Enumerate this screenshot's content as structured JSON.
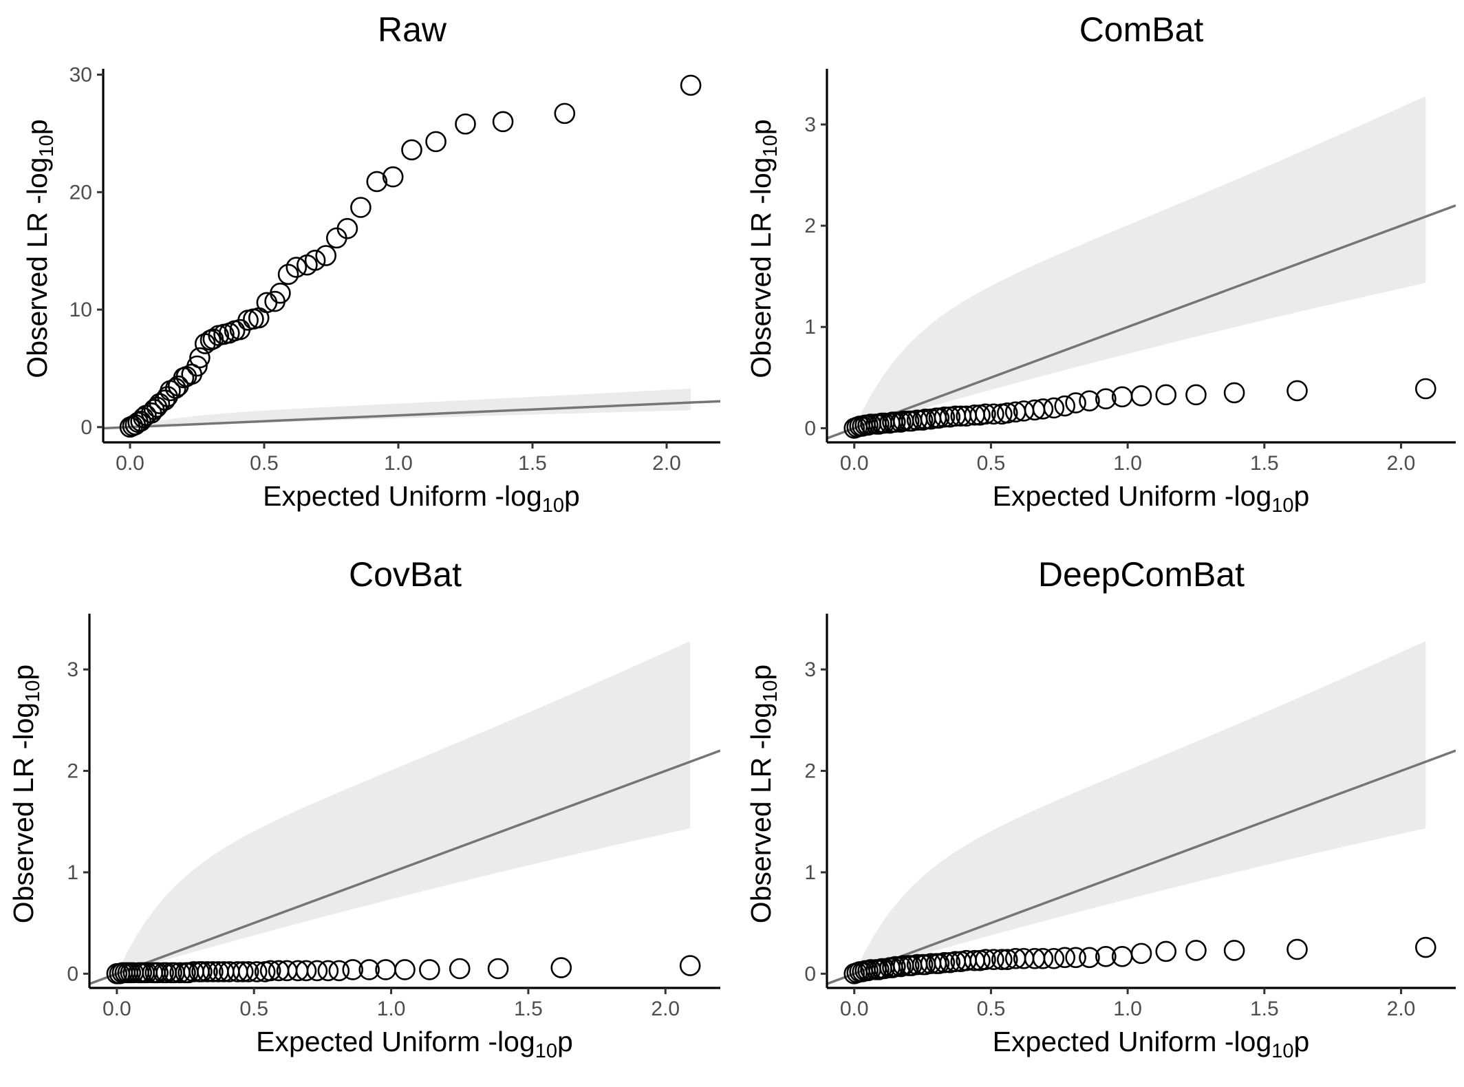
{
  "chart_data": [
    {
      "type": "scatter",
      "title": "Raw",
      "xlabel": "Expected Uniform -log",
      "xlabel_sub": "10",
      "xlabel_suffix": "p",
      "ylabel": "Observed LR -log",
      "ylabel_sub": "10",
      "ylabel_suffix": "p",
      "xlim": [
        -0.1,
        2.2
      ],
      "ylim": [
        -1.3,
        30.5
      ],
      "xticks": [
        0.0,
        0.5,
        1.0,
        1.5,
        2.0
      ],
      "xtick_labels": [
        "0.0",
        "0.5",
        "1.0",
        "1.5",
        "2.0"
      ],
      "yticks": [
        0,
        10,
        20,
        30
      ],
      "ytick_labels": [
        "0",
        "10",
        "20",
        "30"
      ],
      "grid": false,
      "reference_line": "y = x",
      "confidence_band": true,
      "series": [
        {
          "x": [
            2.09,
            1.62,
            1.39,
            1.25,
            1.14,
            1.05,
            0.98,
            0.92,
            0.86,
            0.81,
            0.77,
            0.73,
            0.69,
            0.66,
            0.62,
            0.59,
            0.56,
            0.54,
            0.51,
            0.48,
            0.46,
            0.44,
            0.41,
            0.39,
            0.37,
            0.35,
            0.33,
            0.31,
            0.3,
            0.28,
            0.26,
            0.25,
            0.23,
            0.21,
            0.2,
            0.18,
            0.17,
            0.15,
            0.14,
            0.13,
            0.11,
            0.1,
            0.09,
            0.08,
            0.06,
            0.05,
            0.04,
            0.03,
            0.02,
            0.01,
            0.0
          ],
          "y": [
            29.1,
            26.7,
            26.0,
            25.8,
            24.3,
            23.6,
            21.3,
            20.9,
            18.7,
            16.9,
            16.1,
            14.6,
            14.2,
            13.8,
            13.6,
            13.0,
            11.4,
            10.7,
            10.6,
            9.3,
            9.2,
            9.1,
            8.3,
            8.2,
            8.0,
            7.9,
            7.8,
            7.5,
            7.4,
            7.1,
            5.9,
            5.2,
            4.5,
            4.3,
            4.2,
            3.5,
            3.3,
            3.1,
            2.6,
            2.3,
            2.0,
            1.7,
            1.5,
            1.2,
            1.0,
            0.8,
            0.5,
            0.4,
            0.2,
            0.1,
            0.0
          ]
        }
      ]
    },
    {
      "type": "scatter",
      "title": "ComBat",
      "xlabel": "Expected Uniform -log",
      "xlabel_sub": "10",
      "xlabel_suffix": "p",
      "ylabel": "Observed LR -log",
      "ylabel_sub": "10",
      "ylabel_suffix": "p",
      "xlim": [
        -0.1,
        2.2
      ],
      "ylim": [
        -0.14,
        3.55
      ],
      "xticks": [
        0.0,
        0.5,
        1.0,
        1.5,
        2.0
      ],
      "xtick_labels": [
        "0.0",
        "0.5",
        "1.0",
        "1.5",
        "2.0"
      ],
      "yticks": [
        0,
        1,
        2,
        3
      ],
      "ytick_labels": [
        "0",
        "1",
        "2",
        "3"
      ],
      "grid": false,
      "reference_line": "y = x",
      "confidence_band": true,
      "series": [
        {
          "x": [
            2.09,
            1.62,
            1.39,
            1.25,
            1.14,
            1.05,
            0.98,
            0.92,
            0.86,
            0.81,
            0.77,
            0.73,
            0.69,
            0.66,
            0.62,
            0.59,
            0.56,
            0.54,
            0.51,
            0.48,
            0.46,
            0.44,
            0.41,
            0.39,
            0.37,
            0.35,
            0.33,
            0.31,
            0.3,
            0.28,
            0.26,
            0.25,
            0.23,
            0.21,
            0.2,
            0.18,
            0.17,
            0.15,
            0.14,
            0.13,
            0.11,
            0.1,
            0.09,
            0.08,
            0.06,
            0.05,
            0.04,
            0.03,
            0.02,
            0.01,
            0.0
          ],
          "y": [
            0.39,
            0.37,
            0.35,
            0.33,
            0.33,
            0.32,
            0.31,
            0.29,
            0.27,
            0.25,
            0.22,
            0.2,
            0.19,
            0.18,
            0.17,
            0.16,
            0.15,
            0.14,
            0.14,
            0.14,
            0.13,
            0.13,
            0.12,
            0.12,
            0.12,
            0.11,
            0.11,
            0.1,
            0.1,
            0.09,
            0.09,
            0.08,
            0.08,
            0.07,
            0.07,
            0.07,
            0.06,
            0.06,
            0.06,
            0.05,
            0.05,
            0.05,
            0.04,
            0.04,
            0.04,
            0.03,
            0.03,
            0.02,
            0.02,
            0.01,
            0.0
          ]
        }
      ]
    },
    {
      "type": "scatter",
      "title": "CovBat",
      "xlabel": "Expected Uniform -log",
      "xlabel_sub": "10",
      "xlabel_suffix": "p",
      "ylabel": "Observed LR -log",
      "ylabel_sub": "10",
      "ylabel_suffix": "p",
      "xlim": [
        -0.1,
        2.2
      ],
      "ylim": [
        -0.14,
        3.55
      ],
      "xticks": [
        0.0,
        0.5,
        1.0,
        1.5,
        2.0
      ],
      "xtick_labels": [
        "0.0",
        "0.5",
        "1.0",
        "1.5",
        "2.0"
      ],
      "yticks": [
        0,
        1,
        2,
        3
      ],
      "ytick_labels": [
        "0",
        "1",
        "2",
        "3"
      ],
      "grid": false,
      "reference_line": "y = x",
      "confidence_band": true,
      "series": [
        {
          "x": [
            2.09,
            1.62,
            1.39,
            1.25,
            1.14,
            1.05,
            0.98,
            0.92,
            0.86,
            0.81,
            0.77,
            0.73,
            0.69,
            0.66,
            0.62,
            0.59,
            0.56,
            0.54,
            0.51,
            0.48,
            0.46,
            0.44,
            0.41,
            0.39,
            0.37,
            0.35,
            0.33,
            0.31,
            0.3,
            0.28,
            0.26,
            0.25,
            0.23,
            0.21,
            0.2,
            0.18,
            0.17,
            0.15,
            0.14,
            0.13,
            0.11,
            0.1,
            0.09,
            0.08,
            0.06,
            0.05,
            0.04,
            0.03,
            0.02,
            0.01,
            0.0
          ],
          "y": [
            0.08,
            0.06,
            0.05,
            0.05,
            0.04,
            0.04,
            0.04,
            0.04,
            0.04,
            0.03,
            0.03,
            0.03,
            0.03,
            0.03,
            0.03,
            0.03,
            0.03,
            0.02,
            0.02,
            0.02,
            0.02,
            0.02,
            0.02,
            0.02,
            0.02,
            0.02,
            0.02,
            0.02,
            0.02,
            0.02,
            0.01,
            0.01,
            0.01,
            0.01,
            0.01,
            0.01,
            0.01,
            0.01,
            0.01,
            0.01,
            0.01,
            0.01,
            0.01,
            0.01,
            0.01,
            0.01,
            0.01,
            0.01,
            0.01,
            0.0,
            0.0
          ]
        }
      ]
    },
    {
      "type": "scatter",
      "title": "DeepComBat",
      "xlabel": "Expected Uniform -log",
      "xlabel_sub": "10",
      "xlabel_suffix": "p",
      "ylabel": "Observed LR -log",
      "ylabel_sub": "10",
      "ylabel_suffix": "p",
      "xlim": [
        -0.1,
        2.2
      ],
      "ylim": [
        -0.14,
        3.55
      ],
      "xticks": [
        0.0,
        0.5,
        1.0,
        1.5,
        2.0
      ],
      "xtick_labels": [
        "0.0",
        "0.5",
        "1.0",
        "1.5",
        "2.0"
      ],
      "yticks": [
        0,
        1,
        2,
        3
      ],
      "ytick_labels": [
        "0",
        "1",
        "2",
        "3"
      ],
      "grid": false,
      "reference_line": "y = x",
      "confidence_band": true,
      "series": [
        {
          "x": [
            2.09,
            1.62,
            1.39,
            1.25,
            1.14,
            1.05,
            0.98,
            0.92,
            0.86,
            0.81,
            0.77,
            0.73,
            0.69,
            0.66,
            0.62,
            0.59,
            0.56,
            0.54,
            0.51,
            0.48,
            0.46,
            0.44,
            0.41,
            0.39,
            0.37,
            0.35,
            0.33,
            0.31,
            0.3,
            0.28,
            0.26,
            0.25,
            0.23,
            0.21,
            0.2,
            0.18,
            0.17,
            0.15,
            0.14,
            0.13,
            0.11,
            0.1,
            0.09,
            0.08,
            0.06,
            0.05,
            0.04,
            0.03,
            0.02,
            0.01,
            0.0
          ],
          "y": [
            0.26,
            0.24,
            0.23,
            0.23,
            0.22,
            0.2,
            0.17,
            0.17,
            0.16,
            0.16,
            0.16,
            0.15,
            0.15,
            0.15,
            0.15,
            0.15,
            0.14,
            0.14,
            0.14,
            0.14,
            0.13,
            0.13,
            0.13,
            0.12,
            0.12,
            0.11,
            0.11,
            0.1,
            0.1,
            0.1,
            0.09,
            0.09,
            0.09,
            0.08,
            0.08,
            0.08,
            0.07,
            0.07,
            0.06,
            0.06,
            0.05,
            0.05,
            0.04,
            0.04,
            0.04,
            0.03,
            0.03,
            0.02,
            0.02,
            0.01,
            0.0
          ]
        }
      ]
    }
  ]
}
